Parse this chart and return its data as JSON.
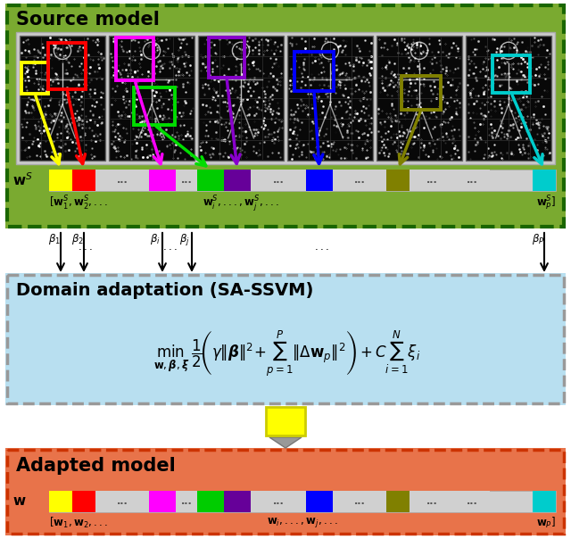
{
  "fig_width": 6.4,
  "fig_height": 6.04,
  "bg_color": "#ffffff",
  "source_box_facecolor": "#7aaa30",
  "adapt_box_facecolor": "#b8dff0",
  "adapted_box_facecolor": "#e8734a",
  "source_title": "Source model",
  "adapt_title": "Domain adaptation (SA-SSVM)",
  "adapted_title": "Adapted model",
  "img_panel_bg": "#d8d8d8",
  "img_dark_bg": "#0a0a0a",
  "bar_bg": "#d0d0d0",
  "bar_seg_colors_src": [
    "#ffff00",
    "#ff0000",
    "#d0d0d0",
    "#d0d0d0",
    "#ff00ff",
    "#d0d0d0",
    "#00cc00",
    "#660099",
    "#d0d0d0",
    "#0000ff",
    "#d0d0d0",
    "#808000",
    "#d0d0d0",
    "#d0d0d0",
    "#00cccc"
  ],
  "bar_seg_colors_adp": [
    "#ffff00",
    "#ff0000",
    "#d0d0d0",
    "#d0d0d0",
    "#ff00ff",
    "#d0d0d0",
    "#00cc00",
    "#660099",
    "#d0d0d0",
    "#0000ff",
    "#d0d0d0",
    "#808000",
    "#d0d0d0",
    "#d0d0d0",
    "#00cccc"
  ],
  "highlight_colors": [
    "#ffff00",
    "#ff0000",
    "#ff00ff",
    "#00cc00",
    "#660099",
    "#0000ff",
    "#808000",
    "#00cccc"
  ]
}
